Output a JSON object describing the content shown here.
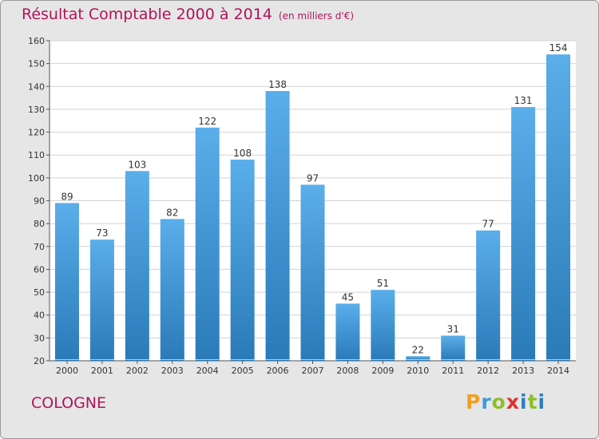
{
  "title": "Résultat Comptable 2000 à 2014",
  "subtitle": "(en milliers d'€)",
  "location": "COLOGNE",
  "brand": {
    "letters": [
      "P",
      "r",
      "o",
      "x",
      "i",
      "t",
      "i"
    ],
    "colors": [
      "#f0a020",
      "#3a9ad9",
      "#8bbf2a",
      "#e03030",
      "#2a7fc0",
      "#8bbf2a",
      "#2a7fc0"
    ]
  },
  "colors": {
    "bar_top": "#5aaeea",
    "bar_bottom": "#2a7ab8",
    "text": "#b0145a",
    "gridline": "#d2d2d2",
    "plot_bg": "#ffffff"
  },
  "chart_data": {
    "type": "bar",
    "categories": [
      "2000",
      "2001",
      "2002",
      "2003",
      "2004",
      "2005",
      "2006",
      "2007",
      "2008",
      "2009",
      "2010",
      "2011",
      "2012",
      "2013",
      "2014"
    ],
    "values": [
      89,
      73,
      103,
      82,
      122,
      108,
      138,
      97,
      45,
      51,
      22,
      31,
      77,
      131,
      154
    ],
    "ylim": [
      20,
      160
    ],
    "yticks": [
      20,
      30,
      40,
      50,
      60,
      70,
      80,
      90,
      100,
      110,
      120,
      130,
      140,
      150,
      160
    ],
    "grid": true,
    "data_labels": true
  }
}
